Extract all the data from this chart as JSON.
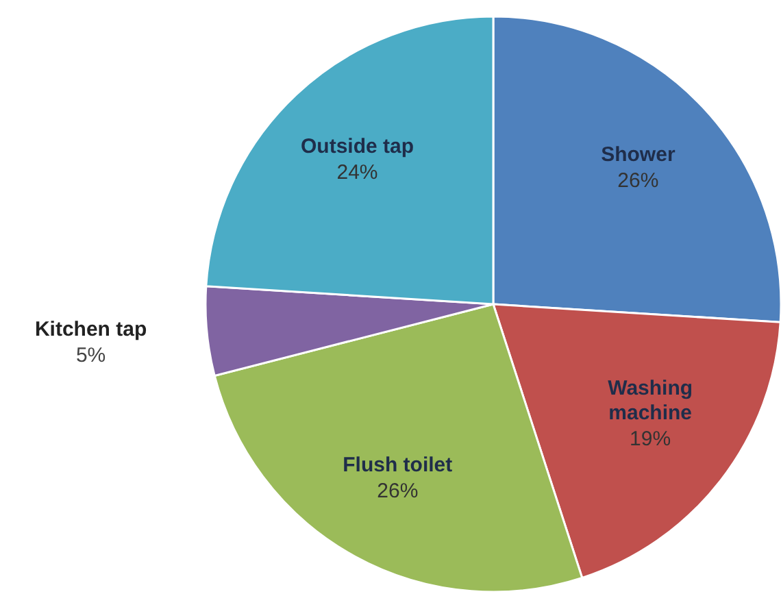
{
  "chart_data": {
    "type": "pie",
    "categories": [
      "Shower",
      "Washing machine",
      "Flush toilet",
      "Kitchen tap",
      "Outside tap"
    ],
    "values": [
      26,
      19,
      26,
      5,
      24
    ],
    "value_labels": [
      "26%",
      "19%",
      "26%",
      "5%",
      "24%"
    ],
    "colors": [
      "#4f81bd",
      "#c0504d",
      "#9bbb59",
      "#8064a2",
      "#4bacc6"
    ]
  }
}
